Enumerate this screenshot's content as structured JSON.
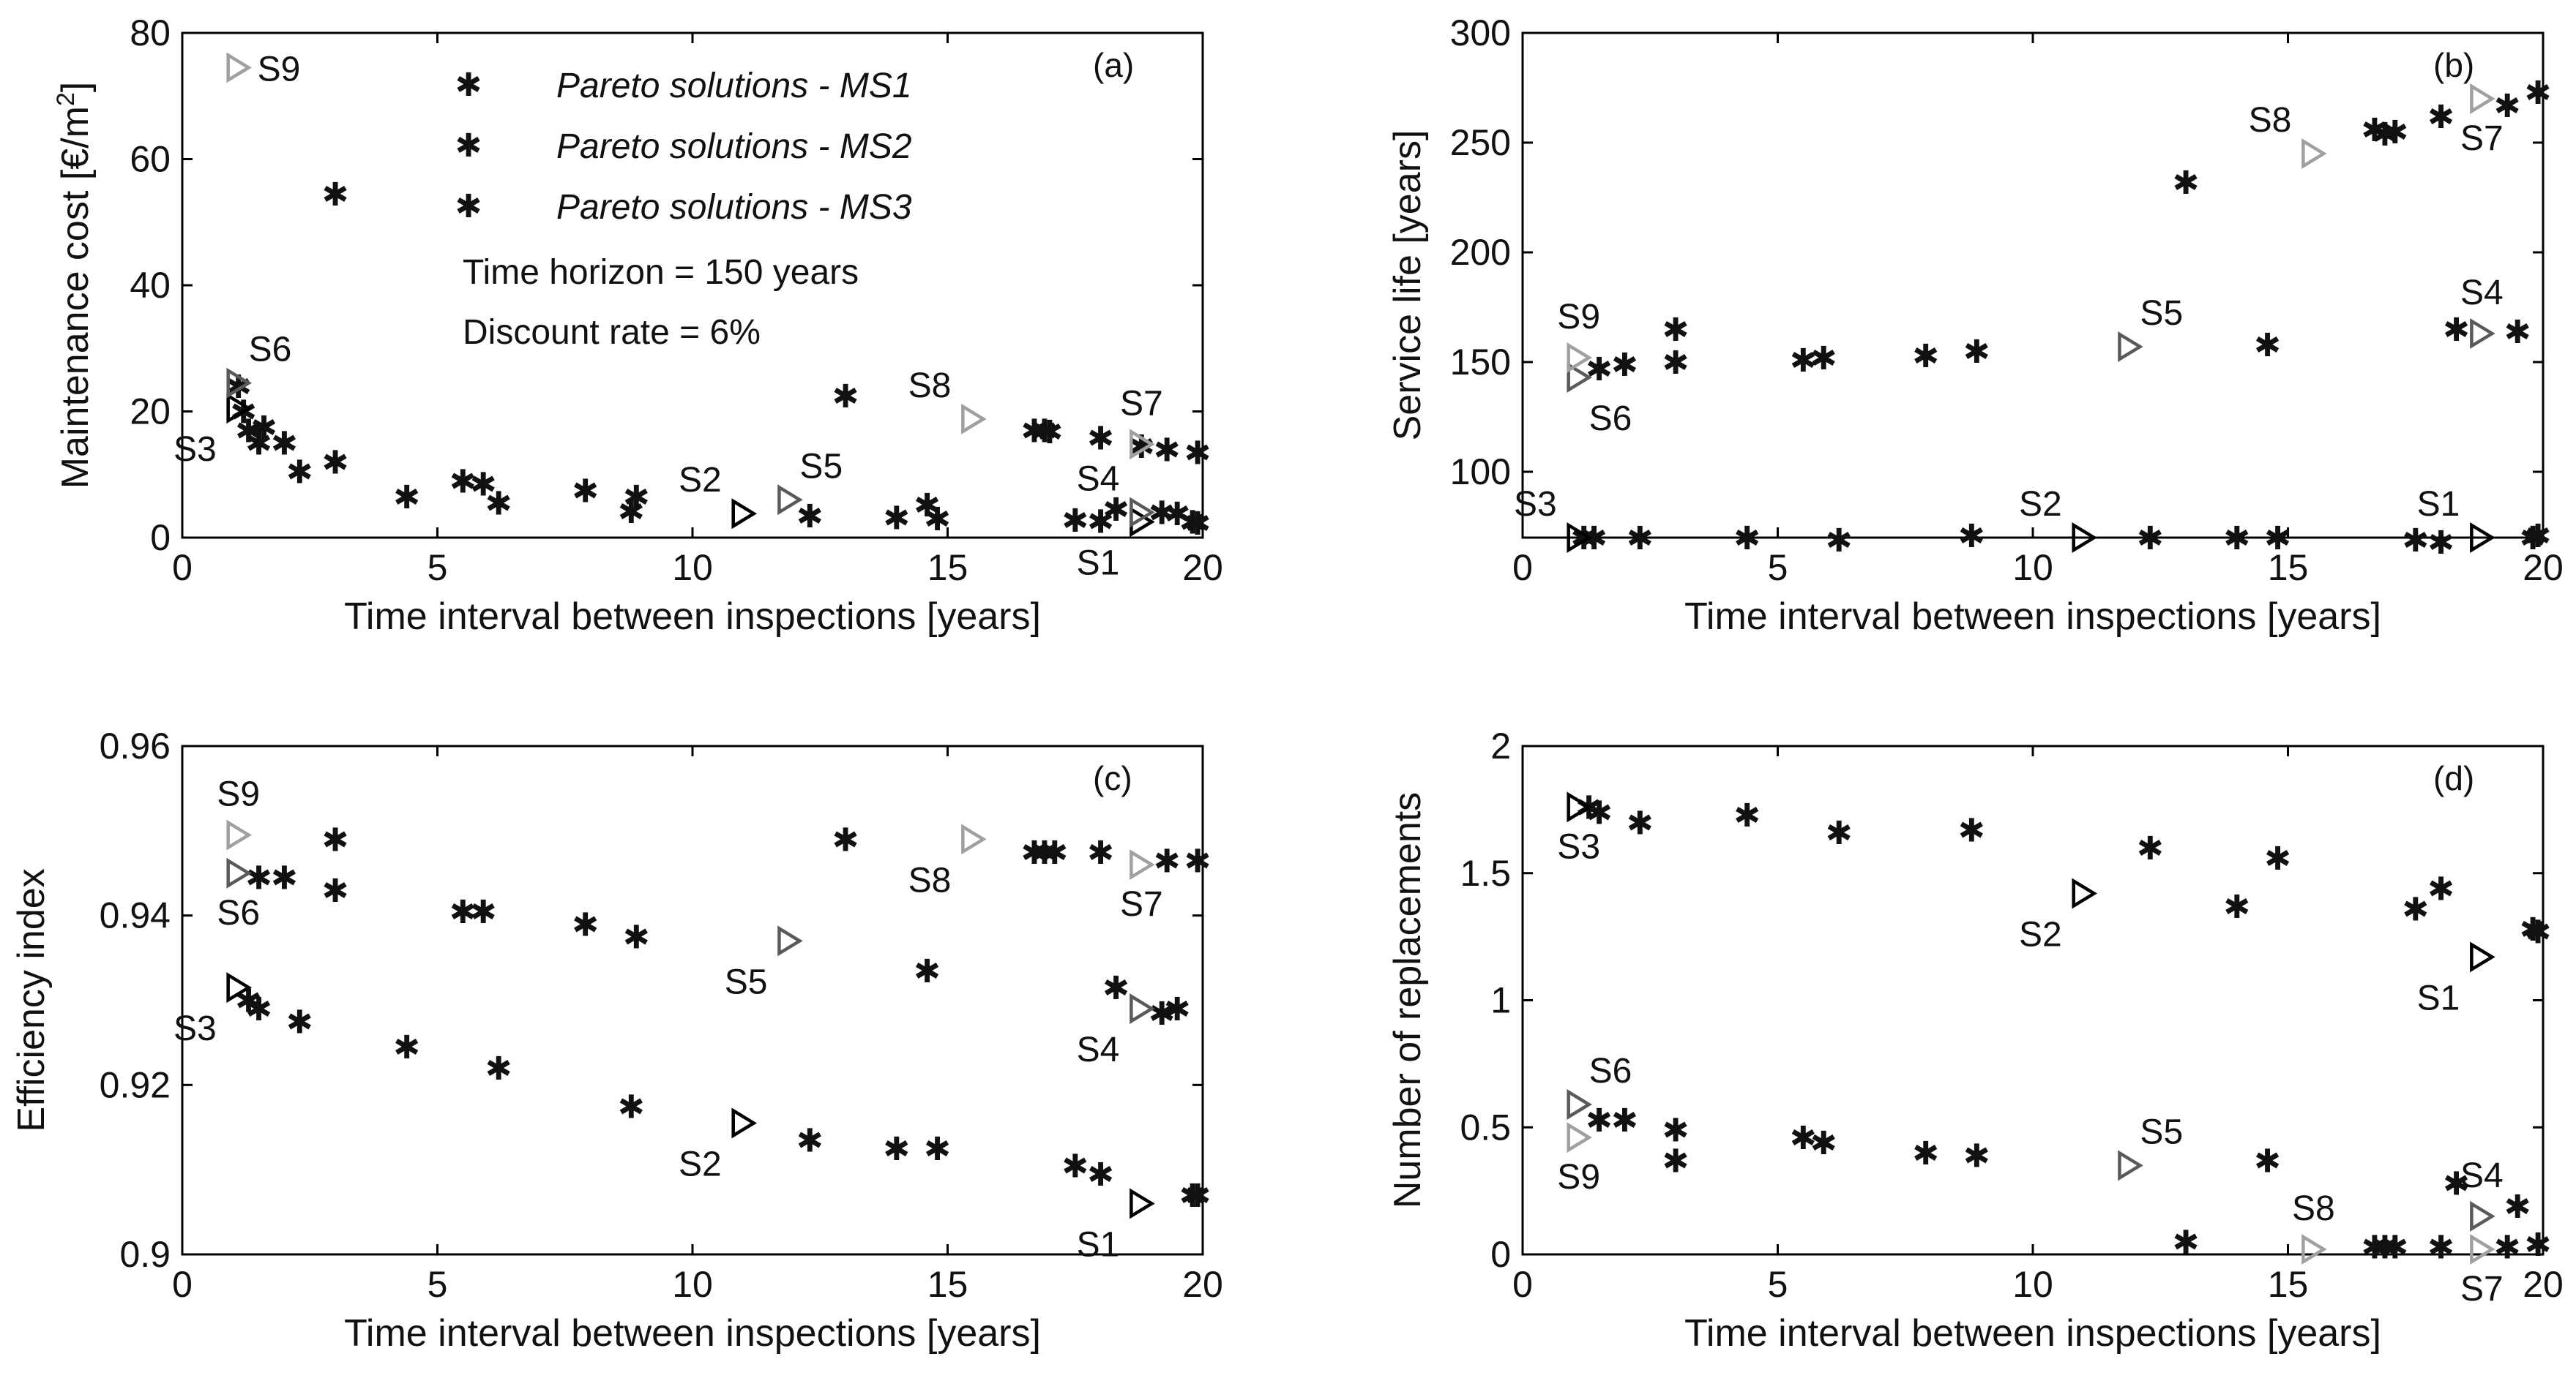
{
  "figure": {
    "colors": {
      "MS1": "#000000",
      "MS2": "#5a5a5a",
      "MS3": "#a0a0a0",
      "axis": "#000000"
    },
    "legend": [
      {
        "series": "MS1",
        "label": "Pareto solutions - MS1"
      },
      {
        "series": "MS2",
        "label": "Pareto solutions - MS2"
      },
      {
        "series": "MS3",
        "label": "Pareto solutions - MS3"
      }
    ],
    "notes": [
      "Time horizon = 150 years",
      "Discount rate = 6%"
    ]
  },
  "chart_data": [
    {
      "id": "a",
      "type": "scatter",
      "letter": "(a)",
      "xlabel": "Time interval between inspections [years]",
      "ylabel": "Maintenance cost [€/m²]",
      "xlim": [
        0,
        20
      ],
      "ylim": [
        0,
        80
      ],
      "xticks": [
        0,
        5,
        10,
        15,
        20
      ],
      "yticks": [
        0,
        20,
        40,
        60,
        80
      ],
      "series": [
        {
          "name": "MS1",
          "points": [
            [
              1.2,
              20
            ],
            [
              1.3,
              17
            ],
            [
              1.5,
              15
            ],
            [
              2.3,
              10.5
            ],
            [
              4.4,
              6.5
            ],
            [
              6.2,
              5.5
            ],
            [
              8.8,
              4.2
            ],
            [
              12.3,
              3.5
            ],
            [
              14.0,
              3.2
            ],
            [
              14.8,
              3.0
            ],
            [
              17.5,
              2.8
            ],
            [
              18.0,
              2.6
            ],
            [
              19.8,
              2.5
            ],
            [
              19.9,
              2.3
            ]
          ]
        },
        {
          "name": "MS2",
          "points": [
            [
              1.1,
              24
            ],
            [
              1.6,
              17.5
            ],
            [
              2.0,
              15
            ],
            [
              3.0,
              12
            ],
            [
              5.5,
              9
            ],
            [
              5.9,
              8.5
            ],
            [
              7.9,
              7.5
            ],
            [
              8.9,
              6.5
            ],
            [
              14.6,
              5.2
            ],
            [
              18.3,
              4.5
            ],
            [
              19.2,
              4.0
            ],
            [
              19.5,
              3.8
            ]
          ]
        },
        {
          "name": "MS3",
          "points": [
            [
              3.0,
              54.5
            ],
            [
              13.0,
              22.5
            ],
            [
              16.7,
              17
            ],
            [
              16.9,
              17
            ],
            [
              17.0,
              16.8
            ],
            [
              18.0,
              15.8
            ],
            [
              18.8,
              14.5
            ],
            [
              19.3,
              14.0
            ],
            [
              19.9,
              13.5
            ]
          ]
        }
      ],
      "solutions": [
        {
          "label": "S1",
          "x": 18.8,
          "y": 2.5,
          "series": "MS1",
          "pos": "below-left"
        },
        {
          "label": "S2",
          "x": 11.0,
          "y": 3.8,
          "series": "MS1",
          "pos": "above-left"
        },
        {
          "label": "S3",
          "x": 1.1,
          "y": 20.5,
          "series": "MS1",
          "pos": "below-left"
        },
        {
          "label": "S4",
          "x": 18.8,
          "y": 4.0,
          "series": "MS2",
          "pos": "above-left"
        },
        {
          "label": "S5",
          "x": 11.9,
          "y": 6.0,
          "series": "MS2",
          "pos": "above-right"
        },
        {
          "label": "S6",
          "x": 1.1,
          "y": 24.5,
          "series": "MS2",
          "pos": "above-right"
        },
        {
          "label": "S7",
          "x": 18.8,
          "y": 14.8,
          "series": "MS3",
          "pos": "above"
        },
        {
          "label": "S8",
          "x": 15.5,
          "y": 18.8,
          "series": "MS3",
          "pos": "above-left"
        },
        {
          "label": "S9",
          "x": 1.1,
          "y": 74.5,
          "series": "MS3",
          "pos": "right"
        }
      ]
    },
    {
      "id": "b",
      "type": "scatter",
      "letter": "(b)",
      "xlabel": "Time interval between inspections [years]",
      "ylabel": "Service life [years]",
      "xlim": [
        0,
        20
      ],
      "ylim": [
        70,
        300
      ],
      "xticks": [
        0,
        5,
        10,
        15,
        20
      ],
      "yticks": [
        100,
        150,
        200,
        250,
        300
      ],
      "series": [
        {
          "name": "MS1",
          "points": [
            [
              1.2,
              70
            ],
            [
              1.4,
              70
            ],
            [
              2.3,
              70
            ],
            [
              4.4,
              70
            ],
            [
              6.2,
              69
            ],
            [
              8.8,
              71
            ],
            [
              12.3,
              70
            ],
            [
              14.0,
              70
            ],
            [
              14.8,
              70
            ],
            [
              17.5,
              69
            ],
            [
              18.0,
              68
            ],
            [
              19.8,
              70
            ],
            [
              19.9,
              71
            ]
          ]
        },
        {
          "name": "MS2",
          "points": [
            [
              1.5,
              147
            ],
            [
              2.0,
              149
            ],
            [
              3.0,
              150
            ],
            [
              5.5,
              151
            ],
            [
              5.9,
              152
            ],
            [
              7.9,
              153
            ],
            [
              8.9,
              155
            ],
            [
              14.6,
              158
            ],
            [
              18.3,
              165
            ],
            [
              19.5,
              164
            ]
          ]
        },
        {
          "name": "MS3",
          "points": [
            [
              3.0,
              165
            ],
            [
              13.0,
              232
            ],
            [
              16.7,
              256
            ],
            [
              16.9,
              254
            ],
            [
              17.1,
              255
            ],
            [
              18.0,
              262
            ],
            [
              19.3,
              267
            ],
            [
              19.9,
              273
            ]
          ]
        }
      ],
      "solutions": [
        {
          "label": "S1",
          "x": 18.8,
          "y": 70,
          "series": "MS1",
          "pos": "above-left"
        },
        {
          "label": "S2",
          "x": 11.0,
          "y": 70,
          "series": "MS1",
          "pos": "above-left"
        },
        {
          "label": "S3",
          "x": 1.1,
          "y": 70,
          "series": "MS1",
          "pos": "above-left"
        },
        {
          "label": "S4",
          "x": 18.8,
          "y": 163,
          "series": "MS2",
          "pos": "above"
        },
        {
          "label": "S5",
          "x": 11.9,
          "y": 157,
          "series": "MS2",
          "pos": "above-right"
        },
        {
          "label": "S6",
          "x": 1.1,
          "y": 143,
          "series": "MS2",
          "pos": "below-right"
        },
        {
          "label": "S7",
          "x": 18.8,
          "y": 270,
          "series": "MS3",
          "pos": "below"
        },
        {
          "label": "S8",
          "x": 15.5,
          "y": 245,
          "series": "MS3",
          "pos": "above-left"
        },
        {
          "label": "S9",
          "x": 1.1,
          "y": 152,
          "series": "MS3",
          "pos": "above"
        }
      ]
    },
    {
      "id": "c",
      "type": "scatter",
      "letter": "(c)",
      "xlabel": "Time interval between inspections [years]",
      "ylabel": "Efficiency index",
      "xlim": [
        0,
        20
      ],
      "ylim": [
        0.9,
        0.96
      ],
      "xticks": [
        0,
        5,
        10,
        15,
        20
      ],
      "yticks": [
        0.9,
        0.92,
        0.94,
        0.96
      ],
      "ytick_labels": [
        "0.9",
        "0.92",
        "0.94",
        "0.96"
      ],
      "series": [
        {
          "name": "MS1",
          "points": [
            [
              1.3,
              0.93
            ],
            [
              1.5,
              0.929
            ],
            [
              2.3,
              0.9275
            ],
            [
              4.4,
              0.9245
            ],
            [
              6.2,
              0.922
            ],
            [
              8.8,
              0.9175
            ],
            [
              12.3,
              0.9135
            ],
            [
              14.0,
              0.9125
            ],
            [
              14.8,
              0.9125
            ],
            [
              17.5,
              0.9105
            ],
            [
              18.0,
              0.9095
            ],
            [
              19.8,
              0.907
            ],
            [
              19.9,
              0.907
            ]
          ]
        },
        {
          "name": "MS2",
          "points": [
            [
              1.5,
              0.9445
            ],
            [
              2.0,
              0.9445
            ],
            [
              3.0,
              0.943
            ],
            [
              5.5,
              0.9405
            ],
            [
              5.9,
              0.9405
            ],
            [
              7.9,
              0.939
            ],
            [
              8.9,
              0.9375
            ],
            [
              14.6,
              0.9335
            ],
            [
              18.3,
              0.9315
            ],
            [
              19.2,
              0.9285
            ],
            [
              19.5,
              0.929
            ]
          ]
        },
        {
          "name": "MS3",
          "points": [
            [
              3.0,
              0.949
            ],
            [
              13.0,
              0.949
            ],
            [
              16.7,
              0.9475
            ],
            [
              16.9,
              0.9475
            ],
            [
              17.1,
              0.9475
            ],
            [
              18.0,
              0.9475
            ],
            [
              19.3,
              0.9465
            ],
            [
              19.9,
              0.9465
            ]
          ]
        }
      ],
      "solutions": [
        {
          "label": "S1",
          "x": 18.8,
          "y": 0.906,
          "series": "MS1",
          "pos": "below-left"
        },
        {
          "label": "S2",
          "x": 11.0,
          "y": 0.9155,
          "series": "MS1",
          "pos": "below-left"
        },
        {
          "label": "S3",
          "x": 1.1,
          "y": 0.9315,
          "series": "MS1",
          "pos": "below-left"
        },
        {
          "label": "S4",
          "x": 18.8,
          "y": 0.929,
          "series": "MS2",
          "pos": "below-left"
        },
        {
          "label": "S5",
          "x": 11.9,
          "y": 0.937,
          "series": "MS2",
          "pos": "below-left"
        },
        {
          "label": "S6",
          "x": 1.1,
          "y": 0.945,
          "series": "MS2",
          "pos": "below"
        },
        {
          "label": "S7",
          "x": 18.8,
          "y": 0.946,
          "series": "MS3",
          "pos": "below"
        },
        {
          "label": "S8",
          "x": 15.5,
          "y": 0.949,
          "series": "MS3",
          "pos": "below-left"
        },
        {
          "label": "S9",
          "x": 1.1,
          "y": 0.9495,
          "series": "MS3",
          "pos": "above"
        }
      ]
    },
    {
      "id": "d",
      "type": "scatter",
      "letter": "(d)",
      "xlabel": "Time interval between inspections [years]",
      "ylabel": "Number of replacements",
      "xlim": [
        0,
        20
      ],
      "ylim": [
        0,
        2
      ],
      "xticks": [
        0,
        5,
        10,
        15,
        20
      ],
      "yticks": [
        0,
        0.5,
        1,
        1.5,
        2
      ],
      "ytick_labels": [
        "0",
        "0.5",
        "1",
        "1.5",
        "2"
      ],
      "series": [
        {
          "name": "MS1",
          "points": [
            [
              1.3,
              1.76
            ],
            [
              1.5,
              1.74
            ],
            [
              2.3,
              1.7
            ],
            [
              4.4,
              1.73
            ],
            [
              6.2,
              1.66
            ],
            [
              8.8,
              1.67
            ],
            [
              12.3,
              1.6
            ],
            [
              14.0,
              1.37
            ],
            [
              14.8,
              1.56
            ],
            [
              17.5,
              1.36
            ],
            [
              18.0,
              1.44
            ],
            [
              19.8,
              1.28
            ],
            [
              19.9,
              1.27
            ]
          ]
        },
        {
          "name": "MS2",
          "points": [
            [
              1.5,
              0.53
            ],
            [
              2.0,
              0.53
            ],
            [
              3.0,
              0.49
            ],
            [
              5.5,
              0.46
            ],
            [
              5.9,
              0.44
            ],
            [
              7.9,
              0.4
            ],
            [
              8.9,
              0.39
            ],
            [
              14.6,
              0.37
            ],
            [
              18.3,
              0.28
            ],
            [
              19.5,
              0.19
            ]
          ]
        },
        {
          "name": "MS3",
          "points": [
            [
              3.0,
              0.37
            ],
            [
              13.0,
              0.05
            ],
            [
              16.7,
              0.03
            ],
            [
              16.9,
              0.03
            ],
            [
              17.1,
              0.03
            ],
            [
              18.0,
              0.03
            ],
            [
              19.3,
              0.03
            ],
            [
              19.9,
              0.04
            ]
          ]
        }
      ],
      "solutions": [
        {
          "label": "S1",
          "x": 18.8,
          "y": 1.17,
          "series": "MS1",
          "pos": "below-left"
        },
        {
          "label": "S2",
          "x": 11.0,
          "y": 1.42,
          "series": "MS1",
          "pos": "below-left"
        },
        {
          "label": "S3",
          "x": 1.1,
          "y": 1.76,
          "series": "MS1",
          "pos": "below"
        },
        {
          "label": "S4",
          "x": 18.8,
          "y": 0.15,
          "series": "MS2",
          "pos": "above"
        },
        {
          "label": "S5",
          "x": 11.9,
          "y": 0.35,
          "series": "MS2",
          "pos": "above-right"
        },
        {
          "label": "S6",
          "x": 1.1,
          "y": 0.59,
          "series": "MS2",
          "pos": "above-right"
        },
        {
          "label": "S7",
          "x": 18.8,
          "y": 0.02,
          "series": "MS3",
          "pos": "below"
        },
        {
          "label": "S8",
          "x": 15.5,
          "y": 0.02,
          "series": "MS3",
          "pos": "above"
        },
        {
          "label": "S9",
          "x": 1.1,
          "y": 0.46,
          "series": "MS3",
          "pos": "below"
        }
      ]
    }
  ]
}
